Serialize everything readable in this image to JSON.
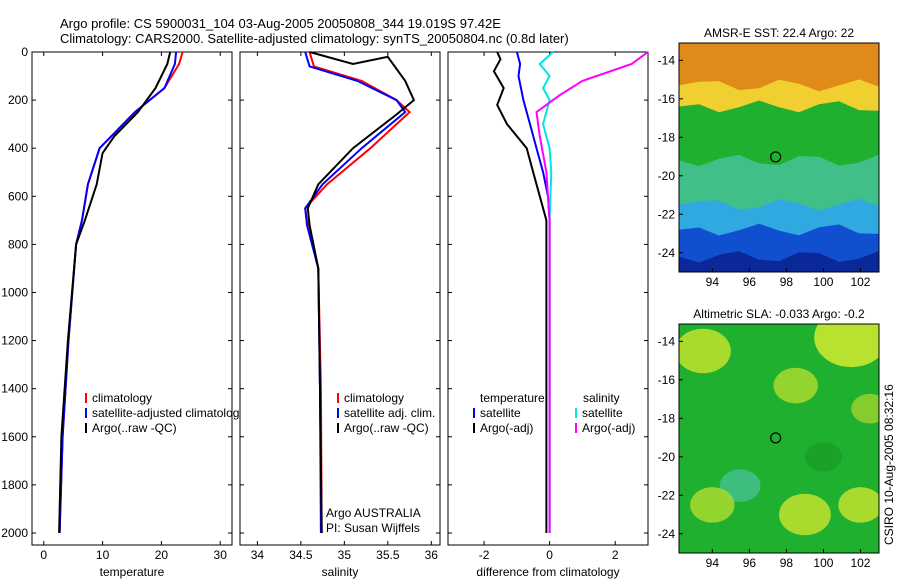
{
  "header": {
    "title_line1": "Argo profile: CS 5900031_104 03-Aug-2005 20050808_344 19.019S 97.42E",
    "title_line2": "Climatology: CARS2000. Satellite-adjusted climatology: synTS_20050804.nc (0.8d later)"
  },
  "side_text": "CSIRO 10-Aug-2005 08:32:16",
  "colors": {
    "clim": "#ff0000",
    "sat": "#0000ff",
    "argo": "#000000",
    "sat_diff_s": "#00e5e5",
    "argo_diff_s": "#ff00ff"
  },
  "chart_data": [
    {
      "id": "temperature",
      "type": "line",
      "xlabel": "temperature",
      "xlim": [
        -2,
        32
      ],
      "ylim": [
        0,
        2050
      ],
      "xticks": [
        0,
        10,
        20,
        30
      ],
      "yticks": [
        0,
        200,
        400,
        600,
        800,
        1000,
        1200,
        1400,
        1600,
        1800,
        2000
      ],
      "y_inverted": true,
      "legend": [
        "climatology",
        "satellite-adjusted climatology",
        "Argo(..raw -QC)"
      ],
      "series": [
        {
          "name": "climatology",
          "color": "#ff0000",
          "x": [
            23.6,
            23.0,
            20.5,
            15.5,
            11.5,
            9.5,
            7.5,
            6.5,
            5.5,
            4.2,
            3.2,
            2.7
          ],
          "y": [
            0,
            50,
            150,
            250,
            350,
            400,
            550,
            700,
            800,
            1200,
            1600,
            2000
          ]
        },
        {
          "name": "satellite-adjusted climatology",
          "color": "#0000ff",
          "x": [
            22.5,
            22.3,
            20.5,
            15.5,
            11.5,
            9.5,
            7.5,
            6.5,
            5.5,
            4.2,
            3.2,
            2.7
          ],
          "y": [
            0,
            50,
            150,
            250,
            350,
            400,
            550,
            700,
            800,
            1200,
            1600,
            2000
          ]
        },
        {
          "name": "Argo(..raw -QC)",
          "color": "#000000",
          "x": [
            21.5,
            21.0,
            19.0,
            16.0,
            12.0,
            10.0,
            9.0,
            7.0,
            5.5,
            4.1,
            3.0,
            2.6
          ],
          "y": [
            0,
            50,
            150,
            250,
            350,
            420,
            550,
            700,
            800,
            1200,
            1600,
            2000
          ]
        }
      ]
    },
    {
      "id": "salinity",
      "type": "line",
      "xlabel": "salinity",
      "xlim": [
        33.8,
        36.1
      ],
      "ylim": [
        0,
        2050
      ],
      "xticks": [
        34,
        34.5,
        35,
        35.5,
        36
      ],
      "legend": [
        "climatology",
        "satellite adj. clim.",
        "Argo(..raw -QC)"
      ],
      "annotation": [
        "Argo AUSTRALIA",
        "PI: Susan Wijffels"
      ],
      "series": [
        {
          "name": "climatology",
          "color": "#ff0000",
          "x": [
            34.6,
            34.65,
            35.2,
            35.6,
            35.75,
            35.3,
            34.8,
            34.55,
            34.58,
            34.7,
            34.73,
            34.74
          ],
          "y": [
            0,
            60,
            120,
            200,
            250,
            400,
            550,
            650,
            720,
            900,
            1400,
            2000
          ]
        },
        {
          "name": "satellite adj. clim.",
          "color": "#0000ff",
          "x": [
            34.55,
            34.6,
            35.15,
            35.6,
            35.7,
            35.2,
            34.75,
            34.55,
            34.57,
            34.7,
            34.72,
            34.73
          ],
          "y": [
            0,
            60,
            120,
            200,
            250,
            400,
            550,
            650,
            720,
            900,
            1400,
            2000
          ]
        },
        {
          "name": "Argo(..raw -QC)",
          "color": "#000000",
          "x": [
            34.6,
            35.1,
            35.5,
            35.7,
            35.8,
            35.6,
            35.1,
            34.7,
            34.58,
            34.6,
            34.7,
            34.72,
            34.74
          ],
          "y": [
            0,
            50,
            20,
            120,
            200,
            260,
            400,
            550,
            650,
            720,
            900,
            1400,
            2000
          ]
        }
      ]
    },
    {
      "id": "difference",
      "type": "line",
      "xlabel": "difference from climatology",
      "xlim": [
        -3.1,
        3.0
      ],
      "ylim": [
        0,
        2050
      ],
      "xticks": [
        -2,
        0,
        2
      ],
      "legend_headers": [
        "temperature",
        "salinity"
      ],
      "legend_left": [
        "satellite",
        "Argo(-adj)"
      ],
      "legend_right": [
        "satellite",
        "Argo(-adj)"
      ],
      "series": [
        {
          "name": "temperature satellite",
          "color": "#0000ff",
          "x": [
            -1.0,
            -0.9,
            -0.95,
            -0.8,
            -0.6,
            -0.4,
            -0.2,
            -0.05,
            0,
            0,
            0
          ],
          "y": [
            0,
            50,
            100,
            200,
            300,
            400,
            500,
            600,
            700,
            1200,
            2000
          ]
        },
        {
          "name": "temperature Argo(-adj)",
          "color": "#000000",
          "x": [
            -1.6,
            -1.5,
            -1.7,
            -1.4,
            -1.6,
            -1.3,
            -0.7,
            -0.5,
            -0.3,
            -0.1,
            -0.1,
            -0.1
          ],
          "y": [
            0,
            30,
            80,
            150,
            220,
            300,
            400,
            500,
            600,
            700,
            1200,
            2000
          ]
        },
        {
          "name": "salinity satellite",
          "color": "#00e5e5",
          "x": [
            0.1,
            -0.3,
            0.0,
            -0.2,
            0.0,
            -0.2,
            0.0,
            0.05,
            0.0,
            0.0,
            0.0
          ],
          "y": [
            0,
            50,
            100,
            150,
            200,
            300,
            400,
            500,
            700,
            1200,
            2000
          ]
        },
        {
          "name": "salinity Argo(-adj)",
          "color": "#ff00ff",
          "x": [
            3.0,
            2.5,
            1.0,
            0.3,
            -0.4,
            -0.3,
            -0.1,
            0.0,
            0.0,
            0.0
          ],
          "y": [
            0,
            50,
            120,
            180,
            250,
            350,
            500,
            700,
            1200,
            2000
          ]
        }
      ]
    },
    {
      "id": "sst_map",
      "type": "heatmap",
      "title": "AMSR-E SST: 22.4  Argo: 22",
      "xlim": [
        92.2,
        103.0
      ],
      "ylim": [
        -25.0,
        -13.1
      ],
      "xticks": [
        94,
        96,
        98,
        100,
        102
      ],
      "yticks": [
        -14,
        -16,
        -18,
        -20,
        -22,
        -24
      ],
      "marker": {
        "lon": 97.42,
        "lat": -19.02
      },
      "bands": [
        {
          "lat_top": -13.1,
          "color": "#e08a1a"
        },
        {
          "lat_top": -15.3,
          "color": "#f0d030"
        },
        {
          "lat_top": -16.4,
          "color": "#20b030"
        },
        {
          "lat_top": -19.2,
          "color": "#40c088"
        },
        {
          "lat_top": -21.5,
          "color": "#30a8e0"
        },
        {
          "lat_top": -22.8,
          "color": "#1050d0"
        },
        {
          "lat_top": -24.2,
          "color": "#0a2898"
        }
      ]
    },
    {
      "id": "sla_map",
      "type": "heatmap",
      "title": "Altimetric SLA: -0.033  Argo: -0.2",
      "xlim": [
        92.2,
        103.0
      ],
      "ylim": [
        -25.0,
        -13.1
      ],
      "xticks": [
        94,
        96,
        98,
        100,
        102
      ],
      "yticks": [
        -14,
        -16,
        -18,
        -20,
        -22,
        -24
      ],
      "marker": {
        "lon": 97.42,
        "lat": -19.02
      },
      "base_color": "#20b030",
      "blobs": [
        {
          "lon": 93.5,
          "lat": -14.5,
          "r": 1.5,
          "color": "#b8e030"
        },
        {
          "lon": 101.5,
          "lat": -13.8,
          "r": 2.0,
          "color": "#c8e830"
        },
        {
          "lon": 98.5,
          "lat": -16.3,
          "r": 1.2,
          "color": "#a0d830"
        },
        {
          "lon": 102.5,
          "lat": -17.5,
          "r": 1.0,
          "color": "#90d030"
        },
        {
          "lon": 95.5,
          "lat": -21.5,
          "r": 1.1,
          "color": "#40c088"
        },
        {
          "lon": 94.0,
          "lat": -22.5,
          "r": 1.2,
          "color": "#a0d830"
        },
        {
          "lon": 99.0,
          "lat": -23.0,
          "r": 1.4,
          "color": "#b8e030"
        },
        {
          "lon": 102.0,
          "lat": -22.5,
          "r": 1.2,
          "color": "#b8e030"
        },
        {
          "lon": 100.0,
          "lat": -20.0,
          "r": 1.0,
          "color": "#18a028"
        }
      ]
    }
  ]
}
